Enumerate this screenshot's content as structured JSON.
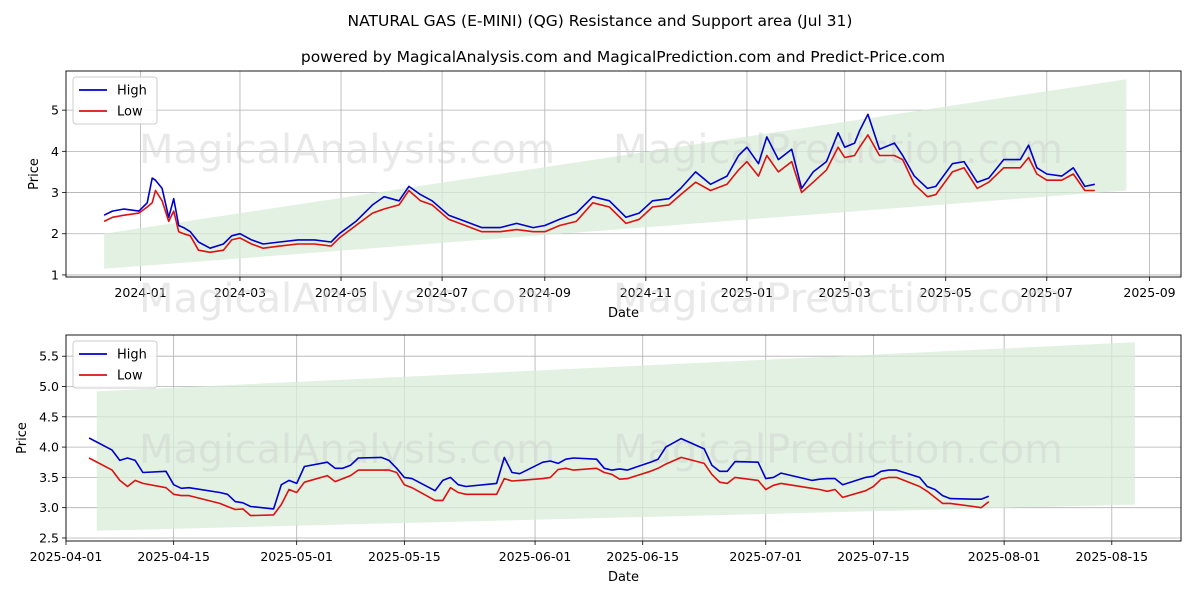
{
  "title": "NATURAL GAS (E-MINI) (QG) Resistance and Support area (Jul 31)",
  "subtitle": "powered by MagicalAnalysis.com and MagicalPrediction.com and Predict-Price.com",
  "watermarks": [
    "MagicalAnalysis.com",
    "MagicalPrediction.com"
  ],
  "colors": {
    "high": "#0000cc",
    "low": "#dd1111",
    "band": "#d8ecd8",
    "grid": "#b0b0b0"
  },
  "chart_data": [
    {
      "type": "line",
      "name": "overview",
      "xlabel": "Date",
      "ylabel": "Price",
      "xlim": [
        "2023-11-17",
        "2025-09-20"
      ],
      "ylim": [
        0.95,
        5.95
      ],
      "xticks": [
        {
          "date": "2024-01-01",
          "label": "2024-01"
        },
        {
          "date": "2024-03-01",
          "label": "2024-03"
        },
        {
          "date": "2024-05-01",
          "label": "2024-05"
        },
        {
          "date": "2024-07-01",
          "label": "2024-07"
        },
        {
          "date": "2024-09-01",
          "label": "2024-09"
        },
        {
          "date": "2024-11-01",
          "label": "2024-11"
        },
        {
          "date": "2025-01-01",
          "label": "2025-01"
        },
        {
          "date": "2025-03-01",
          "label": "2025-03"
        },
        {
          "date": "2025-05-01",
          "label": "2025-05"
        },
        {
          "date": "2025-07-01",
          "label": "2025-07"
        },
        {
          "date": "2025-09-01",
          "label": "2025-09"
        }
      ],
      "yticks": [
        1,
        2,
        3,
        4,
        5
      ],
      "legend": {
        "position": "top-left",
        "entries": [
          "High",
          "Low"
        ]
      },
      "band": {
        "x": [
          "2023-12-10",
          "2025-08-18"
        ],
        "upper": [
          2.0,
          5.75
        ],
        "lower": [
          1.15,
          3.05
        ]
      },
      "series": [
        {
          "name": "High",
          "x": [
            "2023-12-10",
            "2023-12-15",
            "2023-12-22",
            "2023-12-31",
            "2024-01-05",
            "2024-01-08",
            "2024-01-10",
            "2024-01-14",
            "2024-01-18",
            "2024-01-21",
            "2024-01-24",
            "2024-01-27",
            "2024-01-31",
            "2024-02-05",
            "2024-02-12",
            "2024-02-20",
            "2024-02-25",
            "2024-03-01",
            "2024-03-08",
            "2024-03-15",
            "2024-03-25",
            "2024-04-05",
            "2024-04-15",
            "2024-04-25",
            "2024-04-30",
            "2024-05-10",
            "2024-05-20",
            "2024-05-27",
            "2024-06-05",
            "2024-06-11",
            "2024-06-18",
            "2024-06-25",
            "2024-07-05",
            "2024-07-15",
            "2024-07-25",
            "2024-08-05",
            "2024-08-15",
            "2024-08-25",
            "2024-09-01",
            "2024-09-10",
            "2024-09-20",
            "2024-09-30",
            "2024-10-10",
            "2024-10-20",
            "2024-10-28",
            "2024-11-05",
            "2024-11-15",
            "2024-11-22",
            "2024-12-01",
            "2024-12-10",
            "2024-12-20",
            "2024-12-27",
            "2025-01-01",
            "2025-01-08",
            "2025-01-13",
            "2025-01-20",
            "2025-01-28",
            "2025-02-03",
            "2025-02-10",
            "2025-02-18",
            "2025-02-25",
            "2025-03-01",
            "2025-03-07",
            "2025-03-10",
            "2025-03-15",
            "2025-03-22",
            "2025-03-31",
            "2025-04-05",
            "2025-04-12",
            "2025-04-20",
            "2025-04-25",
            "2025-05-05",
            "2025-05-12",
            "2025-05-20",
            "2025-05-27",
            "2025-06-05",
            "2025-06-15",
            "2025-06-20",
            "2025-06-25",
            "2025-07-01",
            "2025-07-10",
            "2025-07-17",
            "2025-07-24",
            "2025-07-30"
          ],
          "values": [
            2.45,
            2.55,
            2.6,
            2.55,
            2.75,
            3.35,
            3.3,
            3.1,
            2.4,
            2.85,
            2.2,
            2.15,
            2.05,
            1.8,
            1.65,
            1.75,
            1.95,
            2.0,
            1.85,
            1.75,
            1.8,
            1.85,
            1.85,
            1.8,
            2.0,
            2.3,
            2.7,
            2.9,
            2.8,
            3.15,
            2.95,
            2.8,
            2.45,
            2.3,
            2.15,
            2.15,
            2.25,
            2.15,
            2.2,
            2.35,
            2.5,
            2.9,
            2.8,
            2.4,
            2.5,
            2.8,
            2.85,
            3.1,
            3.5,
            3.2,
            3.4,
            3.9,
            4.1,
            3.7,
            4.35,
            3.8,
            4.05,
            3.1,
            3.5,
            3.75,
            4.45,
            4.1,
            4.2,
            4.5,
            4.9,
            4.05,
            4.2,
            3.9,
            3.4,
            3.1,
            3.15,
            3.7,
            3.75,
            3.25,
            3.35,
            3.8,
            3.8,
            4.15,
            3.6,
            3.45,
            3.4,
            3.6,
            3.15,
            3.2
          ]
        },
        {
          "name": "Low",
          "x": [
            "2023-12-10",
            "2023-12-15",
            "2023-12-22",
            "2023-12-31",
            "2024-01-05",
            "2024-01-08",
            "2024-01-10",
            "2024-01-14",
            "2024-01-18",
            "2024-01-21",
            "2024-01-24",
            "2024-01-27",
            "2024-01-31",
            "2024-02-05",
            "2024-02-12",
            "2024-02-20",
            "2024-02-25",
            "2024-03-01",
            "2024-03-08",
            "2024-03-15",
            "2024-03-25",
            "2024-04-05",
            "2024-04-15",
            "2024-04-25",
            "2024-04-30",
            "2024-05-10",
            "2024-05-20",
            "2024-05-27",
            "2024-06-05",
            "2024-06-11",
            "2024-06-18",
            "2024-06-25",
            "2024-07-05",
            "2024-07-15",
            "2024-07-25",
            "2024-08-05",
            "2024-08-15",
            "2024-08-25",
            "2024-09-01",
            "2024-09-10",
            "2024-09-20",
            "2024-09-30",
            "2024-10-10",
            "2024-10-20",
            "2024-10-28",
            "2024-11-05",
            "2024-11-15",
            "2024-11-22",
            "2024-12-01",
            "2024-12-10",
            "2024-12-20",
            "2024-12-27",
            "2025-01-01",
            "2025-01-08",
            "2025-01-13",
            "2025-01-20",
            "2025-01-28",
            "2025-02-03",
            "2025-02-10",
            "2025-02-18",
            "2025-02-25",
            "2025-03-01",
            "2025-03-07",
            "2025-03-10",
            "2025-03-15",
            "2025-03-22",
            "2025-03-31",
            "2025-04-05",
            "2025-04-12",
            "2025-04-20",
            "2025-04-25",
            "2025-05-05",
            "2025-05-12",
            "2025-05-20",
            "2025-05-27",
            "2025-06-05",
            "2025-06-15",
            "2025-06-20",
            "2025-06-25",
            "2025-07-01",
            "2025-07-10",
            "2025-07-17",
            "2025-07-24",
            "2025-07-30"
          ],
          "values": [
            2.3,
            2.4,
            2.45,
            2.5,
            2.65,
            2.75,
            3.05,
            2.8,
            2.3,
            2.55,
            2.05,
            2.0,
            1.95,
            1.6,
            1.55,
            1.6,
            1.85,
            1.9,
            1.75,
            1.65,
            1.7,
            1.75,
            1.75,
            1.7,
            1.9,
            2.2,
            2.5,
            2.6,
            2.7,
            3.05,
            2.8,
            2.7,
            2.35,
            2.2,
            2.05,
            2.05,
            2.1,
            2.05,
            2.05,
            2.2,
            2.3,
            2.75,
            2.65,
            2.25,
            2.35,
            2.65,
            2.7,
            2.95,
            3.25,
            3.05,
            3.2,
            3.55,
            3.75,
            3.4,
            3.9,
            3.5,
            3.75,
            3.0,
            3.25,
            3.55,
            4.1,
            3.85,
            3.9,
            4.1,
            4.4,
            3.9,
            3.9,
            3.8,
            3.2,
            2.9,
            2.95,
            3.5,
            3.6,
            3.1,
            3.25,
            3.6,
            3.6,
            3.85,
            3.45,
            3.3,
            3.3,
            3.45,
            3.05,
            3.05
          ]
        }
      ]
    },
    {
      "type": "line",
      "name": "detail",
      "xlabel": "Date",
      "ylabel": "Price",
      "xlim": [
        "2025-04-01",
        "2025-08-24"
      ],
      "ylim": [
        2.45,
        5.85
      ],
      "xticks": [
        {
          "date": "2025-04-01",
          "label": "2025-04-01"
        },
        {
          "date": "2025-04-15",
          "label": "2025-04-15"
        },
        {
          "date": "2025-05-01",
          "label": "2025-05-01"
        },
        {
          "date": "2025-05-15",
          "label": "2025-05-15"
        },
        {
          "date": "2025-06-01",
          "label": "2025-06-01"
        },
        {
          "date": "2025-06-15",
          "label": "2025-06-15"
        },
        {
          "date": "2025-07-01",
          "label": "2025-07-01"
        },
        {
          "date": "2025-07-15",
          "label": "2025-07-15"
        },
        {
          "date": "2025-08-01",
          "label": "2025-08-01"
        },
        {
          "date": "2025-08-15",
          "label": "2025-08-15"
        }
      ],
      "yticks": [
        2.5,
        3.0,
        3.5,
        4.0,
        4.5,
        5.0,
        5.5
      ],
      "ytick_labels": [
        "2.5",
        "3.0",
        "3.5",
        "4.0",
        "4.5",
        "5.0",
        "5.5"
      ],
      "legend": {
        "position": "top-left",
        "entries": [
          "High",
          "Low"
        ]
      },
      "band": {
        "x": [
          "2025-04-05",
          "2025-08-18"
        ],
        "upper": [
          4.92,
          5.73
        ],
        "lower": [
          2.62,
          3.05
        ]
      },
      "series": [
        {
          "name": "High",
          "x": [
            "2025-04-04",
            "2025-04-07",
            "2025-04-08",
            "2025-04-09",
            "2025-04-10",
            "2025-04-11",
            "2025-04-14",
            "2025-04-15",
            "2025-04-16",
            "2025-04-17",
            "2025-04-21",
            "2025-04-22",
            "2025-04-23",
            "2025-04-24",
            "2025-04-25",
            "2025-04-28",
            "2025-04-29",
            "2025-04-30",
            "2025-05-01",
            "2025-05-02",
            "2025-05-05",
            "2025-05-06",
            "2025-05-07",
            "2025-05-08",
            "2025-05-09",
            "2025-05-12",
            "2025-05-13",
            "2025-05-14",
            "2025-05-15",
            "2025-05-16",
            "2025-05-19",
            "2025-05-20",
            "2025-05-21",
            "2025-05-22",
            "2025-05-23",
            "2025-05-27",
            "2025-05-28",
            "2025-05-29",
            "2025-05-30",
            "2025-06-02",
            "2025-06-03",
            "2025-06-04",
            "2025-06-05",
            "2025-06-06",
            "2025-06-09",
            "2025-06-10",
            "2025-06-11",
            "2025-06-12",
            "2025-06-13",
            "2025-06-16",
            "2025-06-17",
            "2025-06-18",
            "2025-06-20",
            "2025-06-23",
            "2025-06-24",
            "2025-06-25",
            "2025-06-26",
            "2025-06-27",
            "2025-06-30",
            "2025-07-01",
            "2025-07-02",
            "2025-07-03",
            "2025-07-07",
            "2025-07-08",
            "2025-07-09",
            "2025-07-10",
            "2025-07-11",
            "2025-07-14",
            "2025-07-15",
            "2025-07-16",
            "2025-07-17",
            "2025-07-18",
            "2025-07-21",
            "2025-07-22",
            "2025-07-23",
            "2025-07-24",
            "2025-07-25",
            "2025-07-28",
            "2025-07-29",
            "2025-07-30"
          ],
          "values": [
            4.15,
            3.95,
            3.78,
            3.82,
            3.78,
            3.58,
            3.6,
            3.38,
            3.32,
            3.33,
            3.25,
            3.22,
            3.1,
            3.08,
            3.02,
            2.98,
            3.38,
            3.45,
            3.4,
            3.68,
            3.75,
            3.65,
            3.65,
            3.7,
            3.82,
            3.83,
            3.78,
            3.65,
            3.5,
            3.48,
            3.28,
            3.45,
            3.5,
            3.38,
            3.35,
            3.4,
            3.83,
            3.58,
            3.56,
            3.75,
            3.77,
            3.73,
            3.8,
            3.82,
            3.8,
            3.65,
            3.62,
            3.64,
            3.62,
            3.75,
            3.8,
            4.0,
            4.14,
            3.97,
            3.7,
            3.6,
            3.6,
            3.76,
            3.75,
            3.48,
            3.5,
            3.57,
            3.45,
            3.47,
            3.48,
            3.48,
            3.38,
            3.5,
            3.52,
            3.6,
            3.62,
            3.62,
            3.5,
            3.35,
            3.3,
            3.2,
            3.15,
            3.14,
            3.14,
            3.19
          ]
        },
        {
          "name": "Low",
          "x": [
            "2025-04-04",
            "2025-04-07",
            "2025-04-08",
            "2025-04-09",
            "2025-04-10",
            "2025-04-11",
            "2025-04-14",
            "2025-04-15",
            "2025-04-16",
            "2025-04-17",
            "2025-04-21",
            "2025-04-22",
            "2025-04-23",
            "2025-04-24",
            "2025-04-25",
            "2025-04-28",
            "2025-04-29",
            "2025-04-30",
            "2025-05-01",
            "2025-05-02",
            "2025-05-05",
            "2025-05-06",
            "2025-05-07",
            "2025-05-08",
            "2025-05-09",
            "2025-05-12",
            "2025-05-13",
            "2025-05-14",
            "2025-05-15",
            "2025-05-16",
            "2025-05-19",
            "2025-05-20",
            "2025-05-21",
            "2025-05-22",
            "2025-05-23",
            "2025-05-27",
            "2025-05-28",
            "2025-05-29",
            "2025-05-30",
            "2025-06-02",
            "2025-06-03",
            "2025-06-04",
            "2025-06-05",
            "2025-06-06",
            "2025-06-09",
            "2025-06-10",
            "2025-06-11",
            "2025-06-12",
            "2025-06-13",
            "2025-06-16",
            "2025-06-17",
            "2025-06-18",
            "2025-06-20",
            "2025-06-23",
            "2025-06-24",
            "2025-06-25",
            "2025-06-26",
            "2025-06-27",
            "2025-06-30",
            "2025-07-01",
            "2025-07-02",
            "2025-07-03",
            "2025-07-07",
            "2025-07-08",
            "2025-07-09",
            "2025-07-10",
            "2025-07-11",
            "2025-07-14",
            "2025-07-15",
            "2025-07-16",
            "2025-07-17",
            "2025-07-18",
            "2025-07-21",
            "2025-07-22",
            "2025-07-23",
            "2025-07-24",
            "2025-07-25",
            "2025-07-28",
            "2025-07-29",
            "2025-07-30"
          ],
          "values": [
            3.82,
            3.62,
            3.45,
            3.35,
            3.45,
            3.4,
            3.33,
            3.22,
            3.2,
            3.2,
            3.07,
            3.02,
            2.97,
            2.98,
            2.87,
            2.88,
            3.05,
            3.3,
            3.25,
            3.42,
            3.53,
            3.43,
            3.48,
            3.53,
            3.62,
            3.62,
            3.62,
            3.58,
            3.38,
            3.33,
            3.12,
            3.12,
            3.33,
            3.25,
            3.22,
            3.22,
            3.48,
            3.44,
            3.45,
            3.48,
            3.5,
            3.63,
            3.65,
            3.62,
            3.65,
            3.58,
            3.55,
            3.47,
            3.48,
            3.6,
            3.65,
            3.72,
            3.83,
            3.73,
            3.55,
            3.42,
            3.4,
            3.5,
            3.45,
            3.3,
            3.37,
            3.4,
            3.32,
            3.3,
            3.27,
            3.3,
            3.17,
            3.28,
            3.35,
            3.47,
            3.5,
            3.5,
            3.35,
            3.27,
            3.17,
            3.07,
            3.07,
            3.02,
            3.0,
            3.1
          ]
        }
      ]
    }
  ]
}
